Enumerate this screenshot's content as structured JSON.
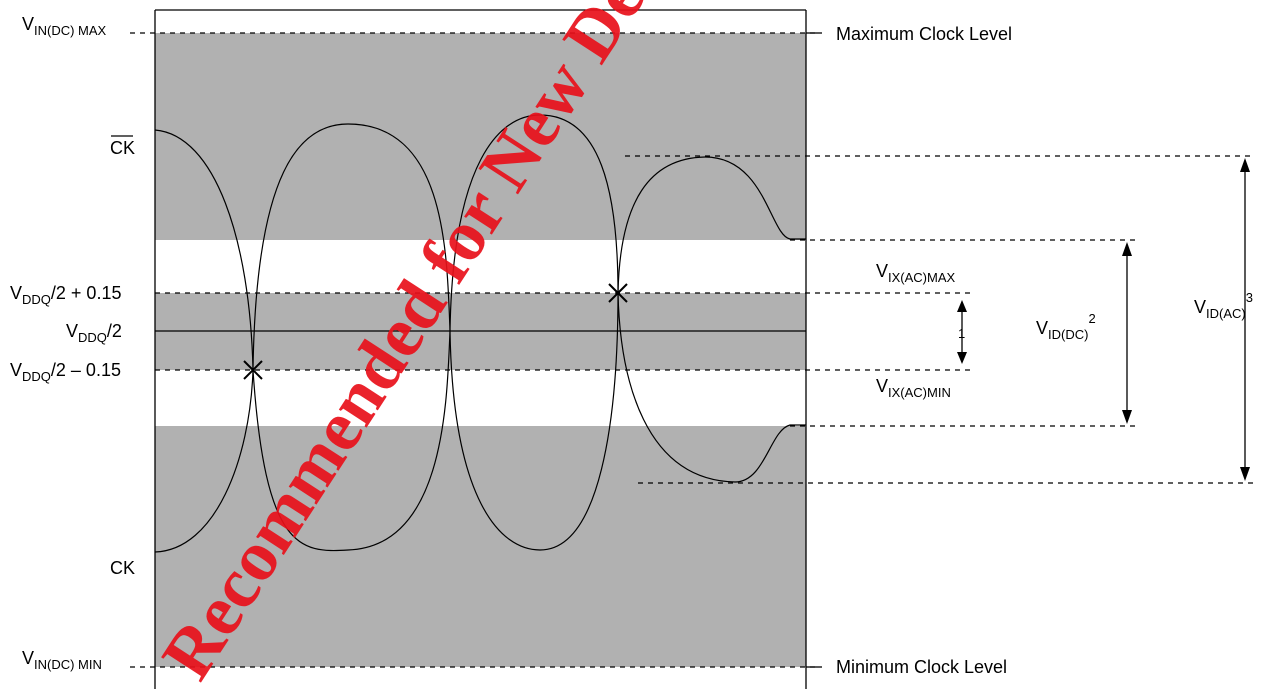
{
  "labels": {
    "vin_dc_max": {
      "main": "V",
      "sub": "IN(DC) MAX"
    },
    "vin_dc_min": {
      "main": "V",
      "sub": "IN(DC) MIN"
    },
    "ck_bar": "CK",
    "ck": "CK",
    "vddq_plus": {
      "main": "V",
      "sub": "DDQ",
      "rest": "/2 + 0.15"
    },
    "vddq_half": {
      "main": "V",
      "sub": "DDQ",
      "rest": "/2"
    },
    "vddq_minus": {
      "main": "V",
      "sub": "DDQ",
      "rest": "/2 – 0.15"
    },
    "max_clock_level": "Maximum Clock Level",
    "min_clock_level": "Minimum Clock Level",
    "vix_ac_max": {
      "main": "V",
      "sub": "IX(AC)MAX"
    },
    "vix_ac_min": {
      "main": "V",
      "sub": "IX(AC)MIN"
    },
    "vid_dc": {
      "main": "V",
      "sub": "ID(DC)",
      "sup": "2"
    },
    "vid_ac": {
      "main": "V",
      "sub": "ID(AC)",
      "sup": "3"
    },
    "note_1": "1"
  },
  "watermark": "Recommended for New Designs",
  "colors": {
    "band_gray": "#b1b1b1",
    "watermark_red": "#e8101a"
  }
}
